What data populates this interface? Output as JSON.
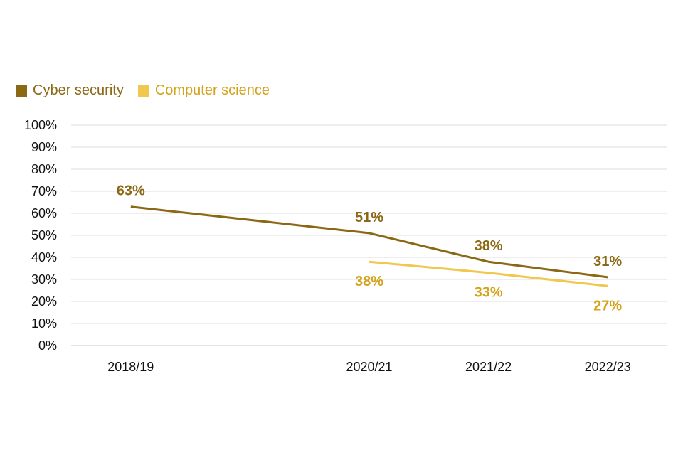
{
  "chart_data": {
    "type": "line",
    "title": "",
    "xlabel": "",
    "ylabel": "",
    "categories": [
      "2018/19",
      "",
      "2020/21",
      "2021/22",
      "2022/23"
    ],
    "ylim": [
      0,
      100
    ],
    "yticks": [
      "0%",
      "10%",
      "20%",
      "30%",
      "40%",
      "50%",
      "60%",
      "70%",
      "80%",
      "90%",
      "100%"
    ],
    "grid": true,
    "legend_position": "top-left",
    "series": [
      {
        "name": "Cyber security",
        "color": "#8B6914",
        "values": [
          63,
          null,
          51,
          38,
          31
        ],
        "labels": [
          "63%",
          "",
          "51%",
          "38%",
          "31%"
        ],
        "label_side": "above"
      },
      {
        "name": "Computer science",
        "color": "#F0C850",
        "label_color": "#D4A21A",
        "values": [
          null,
          null,
          38,
          33,
          27
        ],
        "labels": [
          "",
          "",
          "38%",
          "33%",
          "27%"
        ],
        "label_side": "below"
      }
    ]
  }
}
